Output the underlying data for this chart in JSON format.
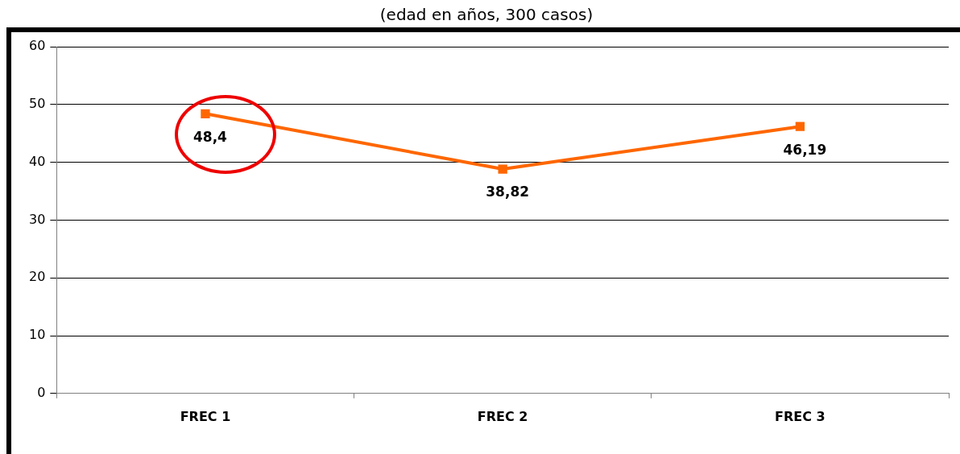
{
  "chart_data": {
    "type": "line",
    "title": "(edad en años, 300 casos)",
    "categories": [
      "FREC 1",
      "FREC 2",
      "FREC 3"
    ],
    "series": [
      {
        "color": "#ff6600",
        "values": [
          48.4,
          38.82,
          46.19
        ],
        "value_labels": [
          "48,4",
          "38,82",
          "46,19"
        ]
      }
    ],
    "ylim": [
      0,
      60
    ],
    "yticks": [
      0,
      10,
      20,
      30,
      40,
      50,
      60
    ],
    "grid": "y",
    "legend": false,
    "marker": "square",
    "line_style": "solid"
  }
}
